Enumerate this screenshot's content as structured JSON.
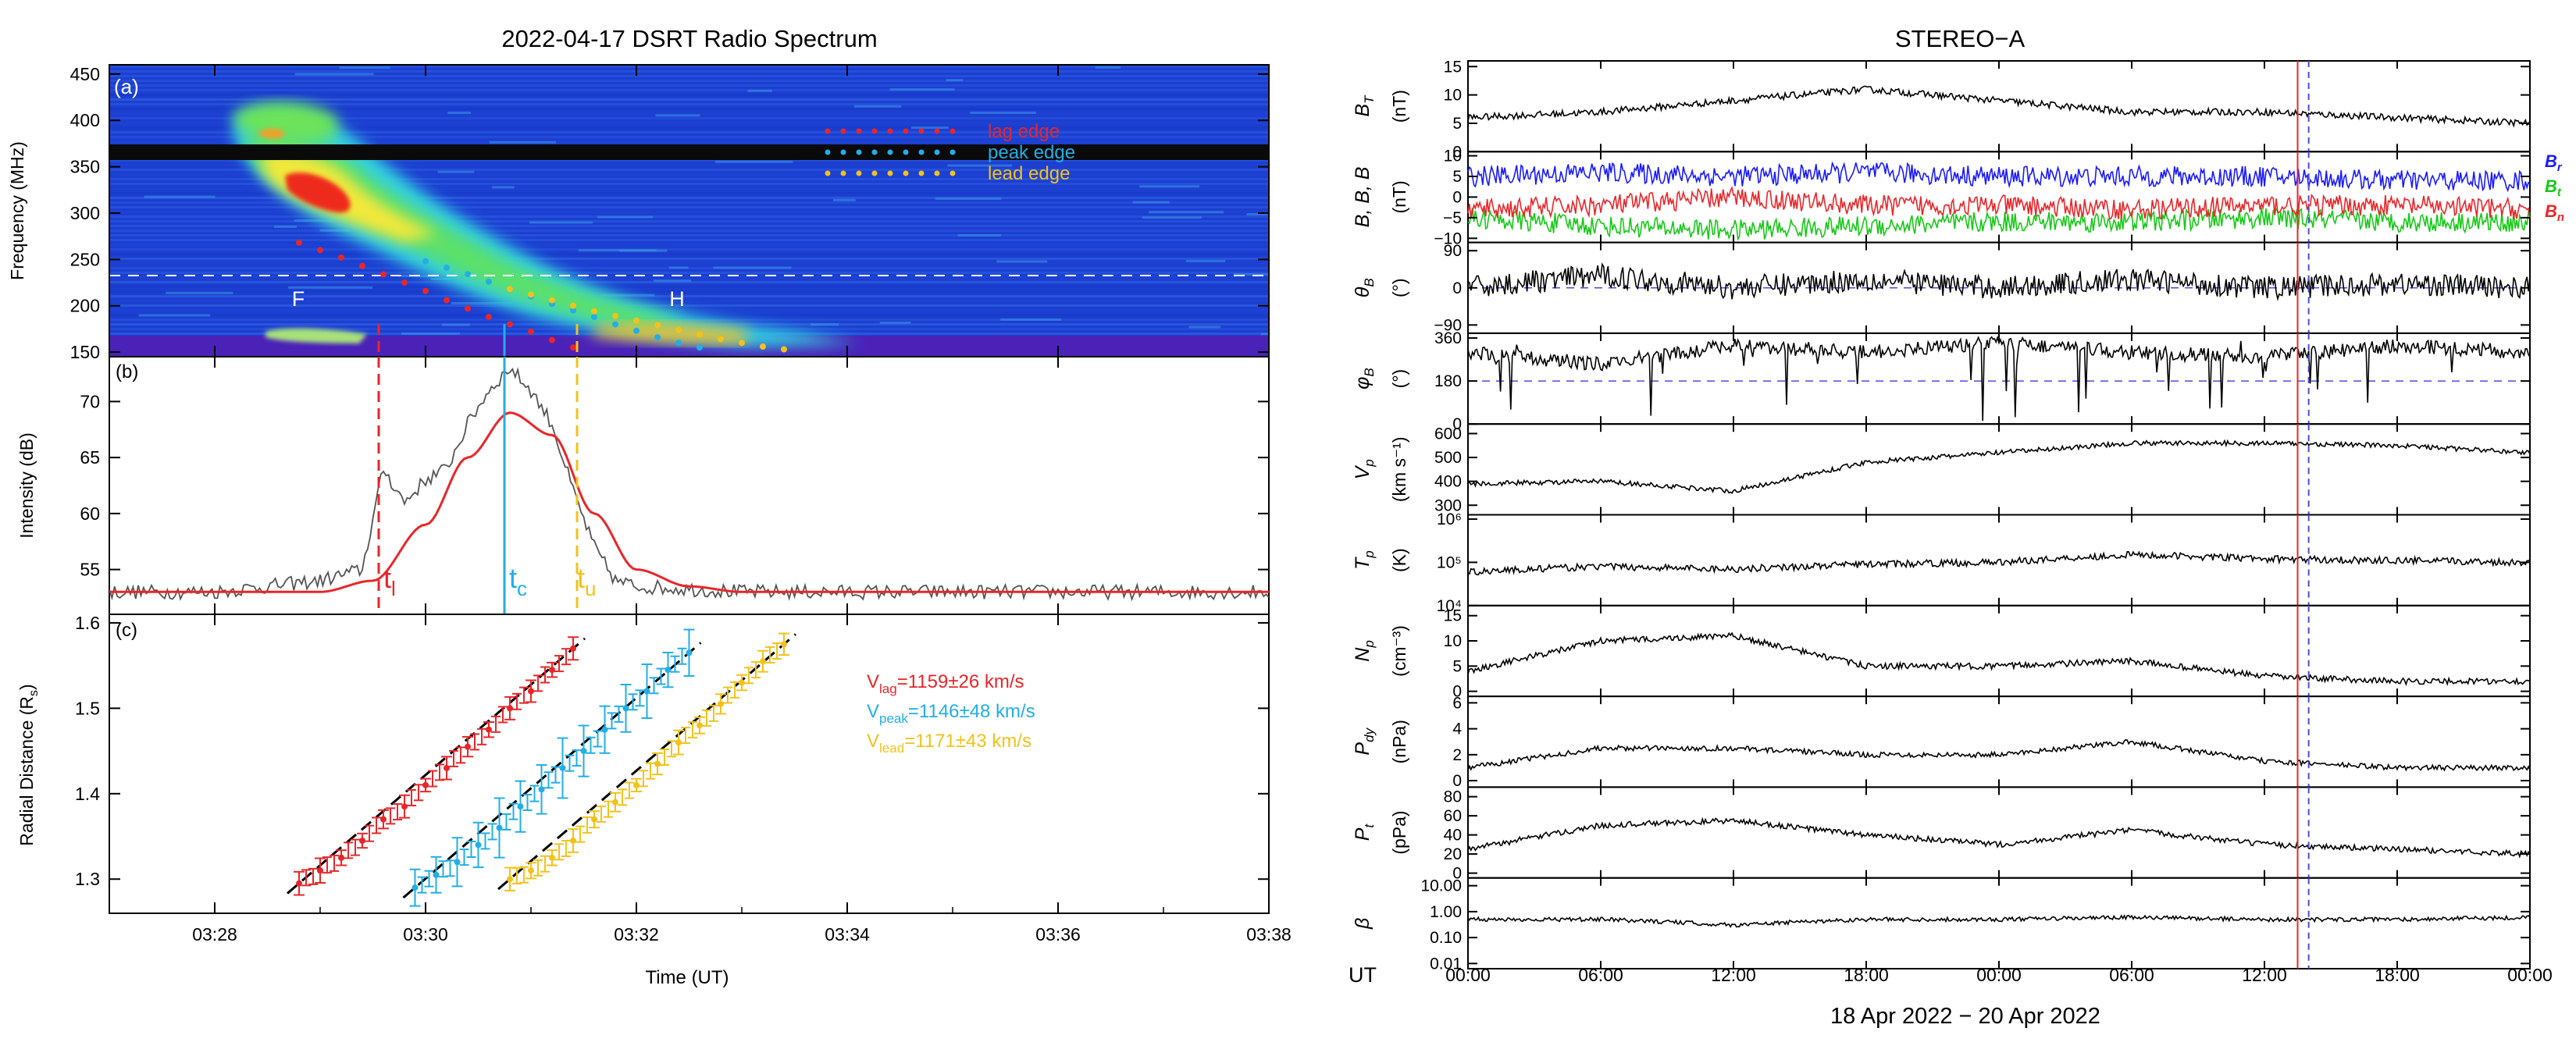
{
  "colors": {
    "lag": "#e8262a",
    "peak": "#22aee6",
    "lead": "#f2c21b",
    "fit": "#e8262a",
    "bx_blue": "#1a1aff",
    "green": "#16c816",
    "dash_blue": "#4d4dd6"
  },
  "left": {
    "title": "2022-04-17 DSRT Radio Spectrum",
    "panel_a": {
      "label": "(a)",
      "ylabel": "Frequency (MHz)",
      "yticks": [
        "150",
        "200",
        "250",
        "300",
        "350",
        "400",
        "450"
      ],
      "legend": [
        "lag edge",
        "peak edge",
        "lead edge"
      ],
      "letters": [
        "F",
        "H"
      ]
    },
    "panel_b": {
      "label": "(b)",
      "ylabel": "Intensity (dB)",
      "yticks": [
        "55",
        "60",
        "65",
        "70"
      ],
      "markers": [
        "t",
        "t",
        "t"
      ],
      "marker_subs": [
        "l",
        "c",
        "u"
      ]
    },
    "panel_c": {
      "label": "(c)",
      "ylabel": "Radial Distance (R",
      "ylabel_sub": "s",
      "ylabel_end": ")",
      "yticks": [
        "1.3",
        "1.4",
        "1.5",
        "1.6"
      ],
      "legend": [
        {
          "pre": "V",
          "sub": "lag",
          "post": "=1159±26 km/s"
        },
        {
          "pre": "V",
          "sub": "peak",
          "post": "=1146±48 km/s"
        },
        {
          "pre": "V",
          "sub": "lead",
          "post": "=1171±43 km/s"
        }
      ]
    },
    "xticks": [
      "03:28",
      "03:30",
      "03:32",
      "03:34",
      "03:36",
      "03:38"
    ],
    "xlabel": "Time (UT)"
  },
  "right": {
    "title": "STEREO−A",
    "ut_label": "UT",
    "xticks": [
      "00:00",
      "06:00",
      "12:00",
      "18:00",
      "00:00",
      "06:00",
      "12:00",
      "18:00",
      "00:00"
    ],
    "date_label": "18 Apr 2022 − 20 Apr 2022",
    "panels": [
      {
        "label": "B",
        "sub": "T",
        "unit": "(nT)",
        "ticks": [
          "0",
          "5",
          "10",
          "15"
        ]
      },
      {
        "label": "B",
        "sub": "r",
        "unit": "(nT)",
        "ticks": [
          "−10",
          "−5",
          "0",
          "5",
          "10"
        ],
        "legend": [
          "B",
          "B",
          "B"
        ],
        "legend_subs": [
          "r",
          "t",
          "n"
        ]
      },
      {
        "label": "θ",
        "sub": "B",
        "unit": "(°)",
        "ticks": [
          "−90",
          "0",
          "90"
        ]
      },
      {
        "label": "φ",
        "sub": "B",
        "unit": "(°)",
        "ticks": [
          "0",
          "180",
          "360"
        ]
      },
      {
        "label": "V",
        "sub": "p",
        "unit": "(km s⁻¹)",
        "ticks": [
          "300",
          "400",
          "500",
          "600"
        ]
      },
      {
        "label": "T",
        "sub": "p",
        "unit": "(K)",
        "ticks": [
          "10⁴",
          "10⁵",
          "10⁶"
        ]
      },
      {
        "label": "N",
        "sub": "p",
        "unit": "(cm⁻³)",
        "ticks": [
          "0",
          "5",
          "10",
          "15"
        ]
      },
      {
        "label": "P",
        "sub": "dy",
        "unit": "(nPa)",
        "ticks": [
          "0",
          "2",
          "4",
          "6"
        ]
      },
      {
        "label": "P",
        "sub": "t",
        "unit": "(pPa)",
        "ticks": [
          "0",
          "20",
          "40",
          "60",
          "80"
        ]
      },
      {
        "label": "β",
        "sub": "",
        "unit": "",
        "ticks": [
          "0.01",
          "0.10",
          "1.00",
          "10.00"
        ]
      }
    ]
  },
  "chart_data": [
    {
      "type": "heatmap",
      "title": "2022-04-17 DSRT Radio Spectrum",
      "panel": "(a)",
      "xlabel": "Time (UT)",
      "ylabel": "Frequency (MHz)",
      "xlim": [
        "03:27:00",
        "03:38:00"
      ],
      "ylim": [
        145,
        460
      ],
      "legend_position": "top-right",
      "series": [
        {
          "name": "lag edge",
          "x": [
            "03:28:48",
            "03:29:00",
            "03:29:12",
            "03:29:24",
            "03:29:36",
            "03:29:48",
            "03:30:00",
            "03:30:12",
            "03:30:24",
            "03:30:36",
            "03:30:48",
            "03:31:00",
            "03:31:12",
            "03:31:24"
          ],
          "y": [
            268,
            260,
            252,
            243,
            234,
            225,
            216,
            206,
            197,
            188,
            180,
            172,
            163,
            155
          ]
        },
        {
          "name": "peak edge",
          "x": [
            "03:30:00",
            "03:30:12",
            "03:30:24",
            "03:30:36",
            "03:30:48",
            "03:31:00",
            "03:31:12",
            "03:31:24",
            "03:31:36",
            "03:31:48",
            "03:32:00",
            "03:32:12",
            "03:32:24",
            "03:32:36"
          ],
          "y": [
            248,
            241,
            234,
            226,
            218,
            210,
            202,
            195,
            188,
            180,
            173,
            166,
            160,
            155
          ]
        },
        {
          "name": "lead edge",
          "x": [
            "03:30:48",
            "03:31:00",
            "03:31:12",
            "03:31:24",
            "03:31:36",
            "03:31:48",
            "03:32:00",
            "03:32:12",
            "03:32:24",
            "03:32:36",
            "03:32:48",
            "03:33:00",
            "03:33:12",
            "03:33:24"
          ],
          "y": [
            218,
            212,
            206,
            200,
            194,
            189,
            184,
            179,
            174,
            169,
            164,
            160,
            156,
            153
          ]
        }
      ]
    },
    {
      "type": "line",
      "panel": "(b)",
      "ylabel": "Intensity (dB)",
      "xlim": [
        "03:27:00",
        "03:38:00"
      ],
      "ylim": [
        51,
        74
      ],
      "series": [
        {
          "name": "",
          "x": [
            "03:27:00",
            "03:28:00",
            "03:29:00",
            "03:29:24",
            "03:29:36",
            "03:29:48",
            "03:30:00",
            "03:30:12",
            "03:30:24",
            "03:30:36",
            "03:30:48",
            "03:31:00",
            "03:31:12",
            "03:31:24",
            "03:31:36",
            "03:31:48",
            "03:32:00",
            "03:33:00",
            "03:34:00",
            "03:36:00",
            "03:38:00"
          ],
          "y": [
            53,
            53,
            54,
            55,
            64,
            61,
            63,
            64,
            68,
            71,
            73,
            71,
            68,
            62,
            57,
            54,
            53.5,
            53,
            53,
            53,
            53
          ]
        },
        {
          "name": "",
          "x": [
            "03:27:00",
            "03:29:00",
            "03:29:30",
            "03:30:00",
            "03:30:24",
            "03:30:48",
            "03:31:12",
            "03:31:36",
            "03:32:00",
            "03:32:30",
            "03:33:00",
            "03:38:00"
          ],
          "y": [
            53,
            53,
            54,
            59,
            65,
            69,
            67,
            60,
            55,
            53.5,
            53,
            53
          ]
        }
      ],
      "markers": {
        "t_l": "03:29:36",
        "t_c": "03:30:48",
        "t_u": "03:31:30"
      }
    },
    {
      "type": "scatter",
      "panel": "(c)",
      "ylabel": "Radial Distance (Rs)",
      "xlabel": "Time (UT)",
      "xlim": [
        "03:27:00",
        "03:38:00"
      ],
      "ylim": [
        1.26,
        1.61
      ],
      "series": [
        {
          "name": "Vlag=1159±26 km/s",
          "x": [
            "03:28:48",
            "03:29:00",
            "03:29:12",
            "03:29:24",
            "03:29:36",
            "03:29:48",
            "03:30:00",
            "03:30:12",
            "03:30:24",
            "03:30:36",
            "03:30:48",
            "03:31:00",
            "03:31:12",
            "03:31:24"
          ],
          "y": [
            1.295,
            1.31,
            1.325,
            1.345,
            1.37,
            1.385,
            1.41,
            1.43,
            1.455,
            1.475,
            1.5,
            1.52,
            1.545,
            1.57
          ]
        },
        {
          "name": "Vpeak=1146±48 km/s",
          "x": [
            "03:29:54",
            "03:30:06",
            "03:30:18",
            "03:30:30",
            "03:30:42",
            "03:30:54",
            "03:31:06",
            "03:31:18",
            "03:31:30",
            "03:31:42",
            "03:31:54",
            "03:32:06",
            "03:32:18",
            "03:32:30"
          ],
          "y": [
            1.29,
            1.305,
            1.32,
            1.34,
            1.36,
            1.385,
            1.405,
            1.43,
            1.45,
            1.475,
            1.5,
            1.52,
            1.545,
            1.565
          ]
        },
        {
          "name": "Vlead=1171±43 km/s",
          "x": [
            "03:30:48",
            "03:31:00",
            "03:31:12",
            "03:31:24",
            "03:31:36",
            "03:31:48",
            "03:32:00",
            "03:32:12",
            "03:32:24",
            "03:32:36",
            "03:32:48",
            "03:33:00",
            "03:33:12",
            "03:33:24"
          ],
          "y": [
            1.3,
            1.31,
            1.325,
            1.345,
            1.37,
            1.39,
            1.41,
            1.435,
            1.46,
            1.48,
            1.505,
            1.53,
            1.555,
            1.575
          ]
        }
      ]
    },
    {
      "type": "line",
      "title": "STEREO−A",
      "xlabel": "18 Apr 2022 − 20 Apr 2022",
      "x_hours": [
        0,
        6,
        12,
        18,
        24,
        30,
        36,
        42,
        48
      ],
      "series": [
        {
          "name": "B_T (nT)",
          "y": [
            6,
            7,
            9,
            11,
            9,
            7,
            7,
            6,
            5
          ]
        },
        {
          "name": "B_r (nT)",
          "y": [
            5,
            6,
            5,
            6,
            5,
            5,
            5,
            4,
            4
          ]
        },
        {
          "name": "B_t (nT)",
          "y": [
            -5,
            -7,
            -8,
            -7,
            -6,
            -6,
            -5,
            -6,
            -6
          ]
        },
        {
          "name": "B_n (nT)",
          "y": [
            -3,
            -2,
            0,
            -2,
            -2,
            -3,
            -2,
            -2,
            -3
          ]
        },
        {
          "name": "θB (°)",
          "y": [
            0,
            30,
            0,
            20,
            0,
            20,
            0,
            10,
            0
          ]
        },
        {
          "name": "φB (°)",
          "y": [
            300,
            250,
            330,
            300,
            340,
            300,
            280,
            330,
            300
          ]
        },
        {
          "name": "Vp (km s⁻¹)",
          "y": [
            390,
            400,
            360,
            480,
            520,
            560,
            560,
            550,
            520
          ]
        },
        {
          "name": "Tp (K)",
          "y": [
            60000,
            80000,
            70000,
            90000,
            100000,
            150000,
            120000,
            110000,
            100000
          ]
        },
        {
          "name": "Np (cm⁻³)",
          "y": [
            4,
            10,
            11,
            5,
            5,
            6,
            3,
            2,
            2
          ]
        },
        {
          "name": "Pdy (nPa)",
          "y": [
            1,
            2.5,
            2.5,
            2,
            2,
            3,
            1.5,
            1,
            1
          ]
        },
        {
          "name": "Pt (pPa)",
          "y": [
            25,
            50,
            55,
            40,
            30,
            45,
            30,
            25,
            20
          ]
        },
        {
          "name": "β",
          "y": [
            0.5,
            0.5,
            0.3,
            0.5,
            0.5,
            0.6,
            0.5,
            0.5,
            0.6
          ]
        }
      ],
      "event_lines_hours": [
        37.5,
        38.0
      ]
    }
  ]
}
